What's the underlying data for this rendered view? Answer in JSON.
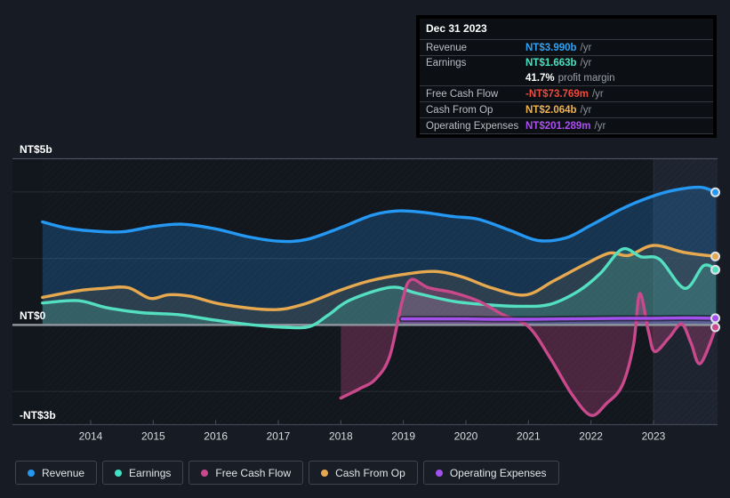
{
  "page": {
    "background": "#171b24"
  },
  "tooltip": {
    "title": "Dec 31 2023",
    "rows": [
      {
        "key": "revenue",
        "label": "Revenue",
        "value": "NT$3.990b",
        "unit": "/yr",
        "value_color": "#2ba2f8"
      },
      {
        "key": "earnings",
        "label": "Earnings",
        "value": "NT$1.663b",
        "unit": "/yr",
        "value_color": "#47e2c2",
        "margin_value": "41.7%",
        "margin_label": "profit margin"
      },
      {
        "key": "free-cash-flow",
        "label": "Free Cash Flow",
        "value": "-NT$73.769m",
        "unit": "/yr",
        "value_color": "#f2493d"
      },
      {
        "key": "cash-from-op",
        "label": "Cash From Op",
        "value": "NT$2.064b",
        "unit": "/yr",
        "value_color": "#eeb14e"
      },
      {
        "key": "operating-expenses",
        "label": "Operating Expenses",
        "value": "NT$201.289m",
        "unit": "/yr",
        "value_color": "#ab4ff2"
      }
    ]
  },
  "legend": {
    "items": [
      {
        "label": "Revenue",
        "color": "#2498f3"
      },
      {
        "label": "Earnings",
        "color": "#3fe0c4"
      },
      {
        "label": "Free Cash Flow",
        "color": "#c9498c"
      },
      {
        "label": "Cash From Op",
        "color": "#e7a94f"
      },
      {
        "label": "Operating Expenses",
        "color": "#a450ed"
      }
    ]
  },
  "chart_data": {
    "type": "area",
    "unit": "NT$ billions per year",
    "x_ticks": [
      2014,
      2015,
      2016,
      2017,
      2018,
      2019,
      2020,
      2021,
      2022,
      2023
    ],
    "y_range": [
      -3,
      5
    ],
    "y_axis_labels": [
      {
        "text": "NT$5b",
        "value": 5
      },
      {
        "text": "NT$0",
        "value": 0
      },
      {
        "text": "-NT$3b",
        "value": -3
      }
    ],
    "gridline_values": [
      4,
      2,
      -2
    ],
    "highlight_band": {
      "from": 2023,
      "to": 2024.05
    },
    "series": [
      {
        "name": "Revenue",
        "color": "#2498f3",
        "fill_opacity": 0.24,
        "points": [
          [
            2013.23,
            3.1
          ],
          [
            2013.6,
            2.92
          ],
          [
            2014.0,
            2.83
          ],
          [
            2014.5,
            2.8
          ],
          [
            2015.0,
            2.96
          ],
          [
            2015.45,
            3.03
          ],
          [
            2016.0,
            2.89
          ],
          [
            2016.5,
            2.66
          ],
          [
            2017.0,
            2.52
          ],
          [
            2017.45,
            2.57
          ],
          [
            2018.0,
            2.93
          ],
          [
            2018.5,
            3.3
          ],
          [
            2018.9,
            3.43
          ],
          [
            2019.3,
            3.39
          ],
          [
            2019.8,
            3.26
          ],
          [
            2020.2,
            3.18
          ],
          [
            2020.7,
            2.85
          ],
          [
            2021.15,
            2.54
          ],
          [
            2021.6,
            2.62
          ],
          [
            2022.0,
            3.0
          ],
          [
            2022.5,
            3.5
          ],
          [
            2022.95,
            3.85
          ],
          [
            2023.35,
            4.06
          ],
          [
            2023.75,
            4.14
          ],
          [
            2024.0,
            3.99
          ]
        ]
      },
      {
        "name": "Cash From Op",
        "color": "#e7a94f",
        "fill_opacity": 0.1,
        "points": [
          [
            2013.23,
            0.83
          ],
          [
            2013.8,
            1.03
          ],
          [
            2014.2,
            1.1
          ],
          [
            2014.6,
            1.12
          ],
          [
            2014.95,
            0.8
          ],
          [
            2015.25,
            0.91
          ],
          [
            2015.6,
            0.86
          ],
          [
            2016.1,
            0.62
          ],
          [
            2016.9,
            0.46
          ],
          [
            2017.4,
            0.62
          ],
          [
            2018.0,
            1.05
          ],
          [
            2018.45,
            1.32
          ],
          [
            2019.0,
            1.52
          ],
          [
            2019.5,
            1.61
          ],
          [
            2019.95,
            1.44
          ],
          [
            2020.4,
            1.12
          ],
          [
            2020.95,
            0.9
          ],
          [
            2021.4,
            1.32
          ],
          [
            2021.9,
            1.82
          ],
          [
            2022.3,
            2.16
          ],
          [
            2022.6,
            2.09
          ],
          [
            2023.0,
            2.39
          ],
          [
            2023.5,
            2.18
          ],
          [
            2024.0,
            2.06
          ]
        ]
      },
      {
        "name": "Earnings",
        "color": "#53dfc0",
        "fill_opacity": 0.2,
        "points": [
          [
            2013.23,
            0.66
          ],
          [
            2013.8,
            0.73
          ],
          [
            2014.25,
            0.52
          ],
          [
            2014.8,
            0.37
          ],
          [
            2015.4,
            0.31
          ],
          [
            2016.0,
            0.14
          ],
          [
            2016.6,
            0.0
          ],
          [
            2017.1,
            -0.07
          ],
          [
            2017.5,
            -0.05
          ],
          [
            2017.8,
            0.3
          ],
          [
            2018.15,
            0.75
          ],
          [
            2018.8,
            1.13
          ],
          [
            2019.2,
            0.96
          ],
          [
            2019.8,
            0.71
          ],
          [
            2020.4,
            0.6
          ],
          [
            2020.9,
            0.56
          ],
          [
            2021.35,
            0.62
          ],
          [
            2021.8,
            1.02
          ],
          [
            2022.15,
            1.55
          ],
          [
            2022.5,
            2.28
          ],
          [
            2022.8,
            2.05
          ],
          [
            2023.1,
            1.97
          ],
          [
            2023.5,
            1.1
          ],
          [
            2023.8,
            1.78
          ],
          [
            2024.0,
            1.66
          ]
        ]
      },
      {
        "name": "Free Cash Flow",
        "color": "#c9498c",
        "fill_opacity": 0.3,
        "points": [
          [
            2018.0,
            -2.2
          ],
          [
            2018.3,
            -1.92
          ],
          [
            2018.55,
            -1.64
          ],
          [
            2018.78,
            -0.95
          ],
          [
            2018.98,
            0.7
          ],
          [
            2019.12,
            1.36
          ],
          [
            2019.4,
            1.12
          ],
          [
            2019.8,
            0.97
          ],
          [
            2020.2,
            0.72
          ],
          [
            2020.6,
            0.3
          ],
          [
            2021.0,
            -0.05
          ],
          [
            2021.35,
            -1.0
          ],
          [
            2021.7,
            -2.1
          ],
          [
            2022.0,
            -2.72
          ],
          [
            2022.25,
            -2.36
          ],
          [
            2022.5,
            -1.82
          ],
          [
            2022.68,
            -0.6
          ],
          [
            2022.78,
            0.94
          ],
          [
            2022.92,
            -0.2
          ],
          [
            2023.02,
            -0.8
          ],
          [
            2023.25,
            -0.38
          ],
          [
            2023.45,
            0.03
          ],
          [
            2023.6,
            -0.55
          ],
          [
            2023.75,
            -1.16
          ],
          [
            2024.0,
            -0.07
          ]
        ]
      },
      {
        "name": "Operating Expenses",
        "color": "#a450ed",
        "fill_opacity": 0.32,
        "points": [
          [
            2018.98,
            0.18
          ],
          [
            2019.5,
            0.18
          ],
          [
            2020.0,
            0.18
          ],
          [
            2020.5,
            0.17
          ],
          [
            2021.0,
            0.17
          ],
          [
            2021.5,
            0.18
          ],
          [
            2022.0,
            0.19
          ],
          [
            2022.5,
            0.2
          ],
          [
            2023.0,
            0.2
          ],
          [
            2023.5,
            0.21
          ],
          [
            2024.0,
            0.2
          ]
        ]
      }
    ]
  }
}
